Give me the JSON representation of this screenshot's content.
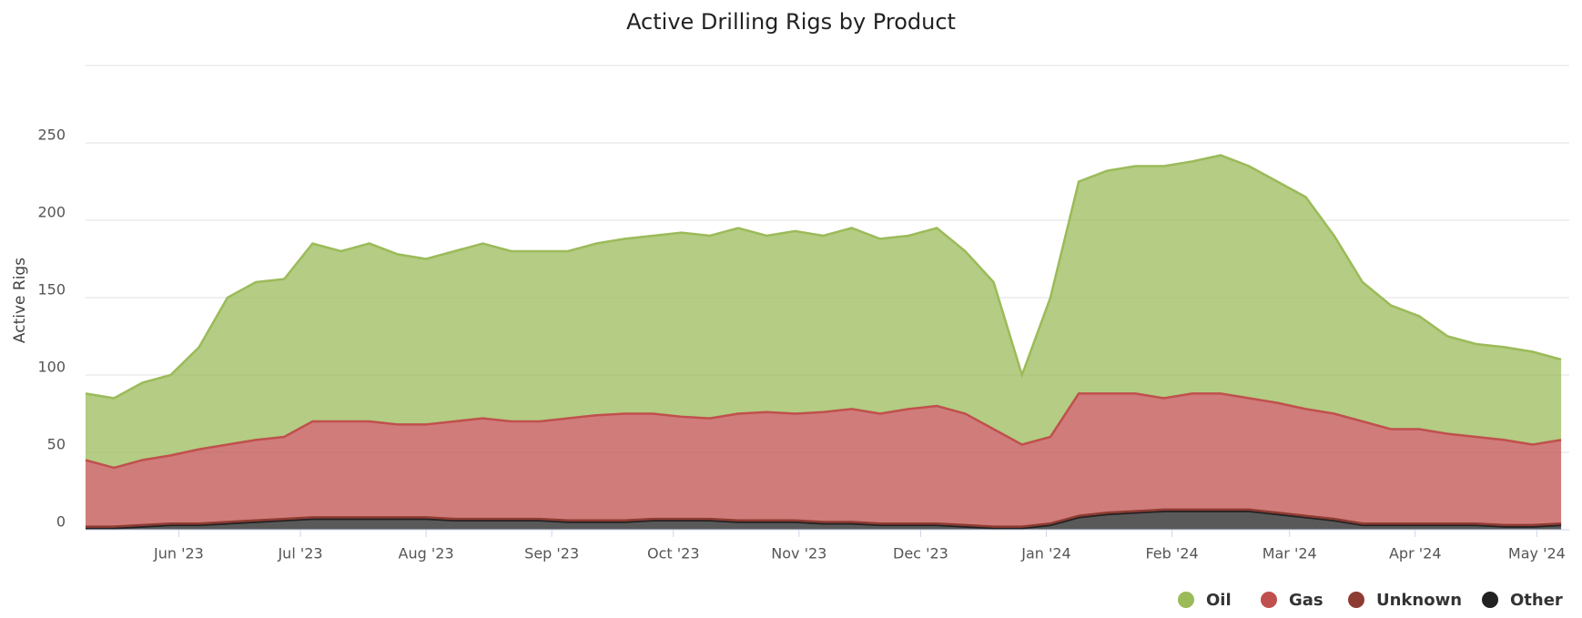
{
  "chart_data": {
    "type": "area",
    "stacked": true,
    "title": "Active Drilling Rigs by Product",
    "y_label": "Active Rigs",
    "x": [
      0,
      7,
      14,
      21,
      28,
      35,
      42,
      49,
      56,
      63,
      70,
      77,
      84,
      91,
      98,
      105,
      112,
      119,
      126,
      133,
      140,
      147,
      154,
      161,
      168,
      175,
      182,
      189,
      196,
      203,
      210,
      217,
      224,
      231,
      238,
      245,
      252,
      259,
      266,
      273,
      280,
      287,
      294,
      301,
      308,
      315,
      322,
      329,
      336,
      343,
      350,
      357,
      364
    ],
    "xlim": [
      0,
      366
    ],
    "xticks": [
      {
        "value": 23,
        "label": "Jun '23"
      },
      {
        "value": 53,
        "label": "Jul '23"
      },
      {
        "value": 84,
        "label": "Aug '23"
      },
      {
        "value": 115,
        "label": "Sep '23"
      },
      {
        "value": 145,
        "label": "Oct '23"
      },
      {
        "value": 176,
        "label": "Nov '23"
      },
      {
        "value": 206,
        "label": "Dec '23"
      },
      {
        "value": 237,
        "label": "Jan '24"
      },
      {
        "value": 268,
        "label": "Feb '24"
      },
      {
        "value": 297,
        "label": "Mar '24"
      },
      {
        "value": 328,
        "label": "Apr '24"
      },
      {
        "value": 358,
        "label": "May '24"
      }
    ],
    "ylim": [
      0,
      300
    ],
    "yticks": [
      0,
      50,
      100,
      150,
      200,
      250
    ],
    "grid": true,
    "legend": "bottom-right",
    "series": [
      {
        "name": "Oil",
        "color": "#9bbb59",
        "values": [
          43,
          45,
          50,
          52,
          66,
          95,
          102,
          102,
          115,
          110,
          115,
          110,
          107,
          110,
          113,
          110,
          110,
          108,
          111,
          113,
          115,
          119,
          118,
          120,
          114,
          118,
          114,
          117,
          113,
          112,
          115,
          105,
          95,
          45,
          90,
          137,
          144,
          147,
          150,
          150,
          154,
          150,
          143,
          137,
          115,
          90,
          80,
          73,
          63,
          60,
          60,
          60,
          52
        ]
      },
      {
        "name": "Gas",
        "color": "#c0504d",
        "values": [
          43,
          38,
          42,
          44,
          48,
          50,
          52,
          53,
          62,
          62,
          62,
          60,
          60,
          63,
          65,
          63,
          63,
          66,
          68,
          69,
          68,
          66,
          65,
          69,
          70,
          69,
          71,
          73,
          71,
          74,
          76,
          72,
          63,
          53,
          56,
          79,
          77,
          76,
          72,
          75,
          75,
          72,
          71,
          69,
          68,
          66,
          61,
          61,
          58,
          56,
          55,
          52,
          54
        ]
      },
      {
        "name": "Unknown",
        "color": "#8e3b33",
        "values": [
          1,
          1,
          1,
          1,
          1,
          1,
          1,
          1,
          1,
          1,
          1,
          1,
          1,
          1,
          1,
          1,
          1,
          1,
          1,
          1,
          1,
          1,
          1,
          1,
          1,
          1,
          1,
          1,
          1,
          1,
          1,
          1,
          1,
          1,
          1,
          1,
          1,
          1,
          1,
          1,
          1,
          1,
          1,
          1,
          1,
          1,
          1,
          1,
          1,
          1,
          1,
          1,
          1
        ]
      },
      {
        "name": "Other",
        "color": "#222222",
        "values": [
          1,
          1,
          2,
          3,
          3,
          4,
          5,
          6,
          7,
          7,
          7,
          7,
          7,
          6,
          6,
          6,
          6,
          5,
          5,
          5,
          6,
          6,
          6,
          5,
          5,
          5,
          4,
          4,
          3,
          3,
          3,
          2,
          1,
          1,
          3,
          8,
          10,
          11,
          12,
          12,
          12,
          12,
          10,
          8,
          6,
          3,
          3,
          3,
          3,
          3,
          2,
          2,
          3
        ]
      }
    ]
  }
}
